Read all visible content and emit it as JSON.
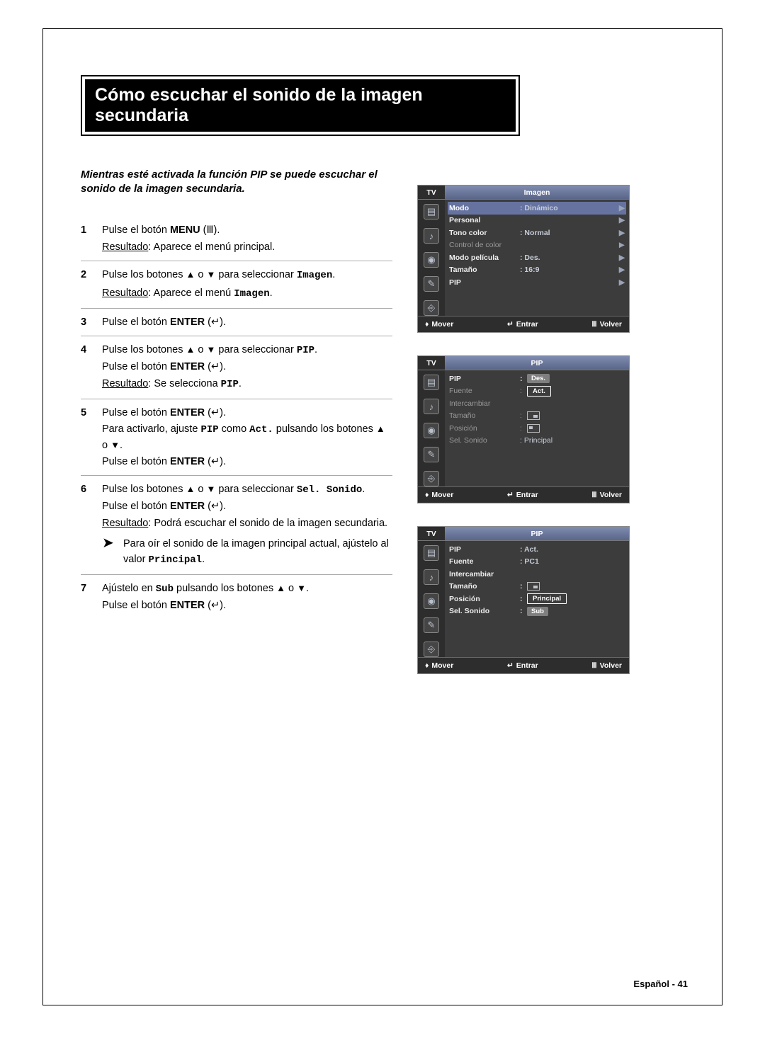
{
  "title": "Cómo escuchar el sonido de la imagen secundaria",
  "intro": "Mientras esté activada la función PIP se puede escuchar el sonido de la imagen secundaria.",
  "steps": {
    "s1_a": "Pulse el botón ",
    "s1_b": "MENU",
    "s1_c": " (",
    "s1_d": ").",
    "s1_res_u": "Resultado",
    "s1_res_t": ":   Aparece el menú principal.",
    "s2_a": "Pulse los botones ",
    "s2_b": " o ",
    "s2_c": " para seleccionar ",
    "s2_code": "Imagen",
    "s2_d": ".",
    "s2_res_u": "Resultado",
    "s2_res_t": ":   Aparece el menú ",
    "s2_res_code": "Imagen",
    "s2_res_end": ".",
    "s3_a": "Pulse el botón ",
    "s3_b": "ENTER",
    "s3_c": " (",
    "s3_d": ").",
    "s4_a": "Pulse los botones ",
    "s4_b": " o ",
    "s4_c": " para seleccionar ",
    "s4_code": "PIP",
    "s4_d": ".",
    "s4_line2a": "Pulse el botón ",
    "s4_line2b": "ENTER",
    "s4_line2c": " (",
    "s4_line2d": ").",
    "s4_res_u": "Resultado",
    "s4_res_t": ":   Se selecciona ",
    "s4_res_code": "PIP",
    "s4_res_end": ".",
    "s5_a": "Pulse el botón ",
    "s5_b": "ENTER",
    "s5_c": " (",
    "s5_d": ").",
    "s5_line2a": "Para activarlo, ajuste ",
    "s5_line2code": "PIP",
    "s5_line2b": " como ",
    "s5_line2code2": "Act.",
    "s5_line2c": " pulsando los botones ",
    "s5_line2d": " o ",
    "s5_line2e": ".",
    "s5_line3a": "Pulse el botón ",
    "s5_line3b": "ENTER",
    "s5_line3c": " (",
    "s5_line3d": ").",
    "s6_a": "Pulse los botones ",
    "s6_b": " o ",
    "s6_c": " para seleccionar ",
    "s6_code": "Sel. Sonido",
    "s6_d": ".",
    "s6_line2a": "Pulse el botón ",
    "s6_line2b": "ENTER",
    "s6_line2c": " (",
    "s6_line2d": ").",
    "s6_res_u": "Resultado",
    "s6_res_t": ":   Podrá escuchar el sonido de la imagen secundaria.",
    "s6_note": "Para oír el sonido de la imagen principal actual, ajústelo al valor ",
    "s6_note_code": "Principal",
    "s6_note_end": ".",
    "s7_a": "Ajústelo en ",
    "s7_code": "Sub",
    "s7_b": " pulsando los botones ",
    "s7_c": " o ",
    "s7_d": ".",
    "s7_line2a": "Pulse el botón ",
    "s7_line2b": "ENTER",
    "s7_line2c": " (",
    "s7_line2d": ")."
  },
  "osd_common": {
    "tv": "TV",
    "mover": "Mover",
    "entrar": "Entrar",
    "volver": "Volver"
  },
  "osd1": {
    "title": "Imagen",
    "row1_l": "Modo",
    "row1_v": ": Dinámico",
    "row2_l": "Personal",
    "row3_l": "Tono color",
    "row3_v": ": Normal",
    "row4_l": "Control de color",
    "row5_l": "Modo película",
    "row5_v": ": Des.",
    "row6_l": "Tamaño",
    "row6_v": ": 16:9",
    "row7_l": "PIP"
  },
  "osd2": {
    "title": "PIP",
    "row1_l": "PIP",
    "row1_v": "Des.",
    "row1_alt": "Act.",
    "row2_l": "Fuente",
    "row3_l": "Intercambiar",
    "row4_l": "Tamaño",
    "row5_l": "Posición",
    "row6_l": "Sel. Sonido",
    "row6_v": ": Principal"
  },
  "osd3": {
    "title": "PIP",
    "row1_l": "PIP",
    "row1_v": ": Act.",
    "row2_l": "Fuente",
    "row2_v": ": PC1",
    "row3_l": "Intercambiar",
    "row4_l": "Tamaño",
    "row5_l": "Posición",
    "row6_l": "Sel. Sonido",
    "row6_opt1": "Principal",
    "row6_opt2": "Sub"
  },
  "footer": "Español - 41"
}
